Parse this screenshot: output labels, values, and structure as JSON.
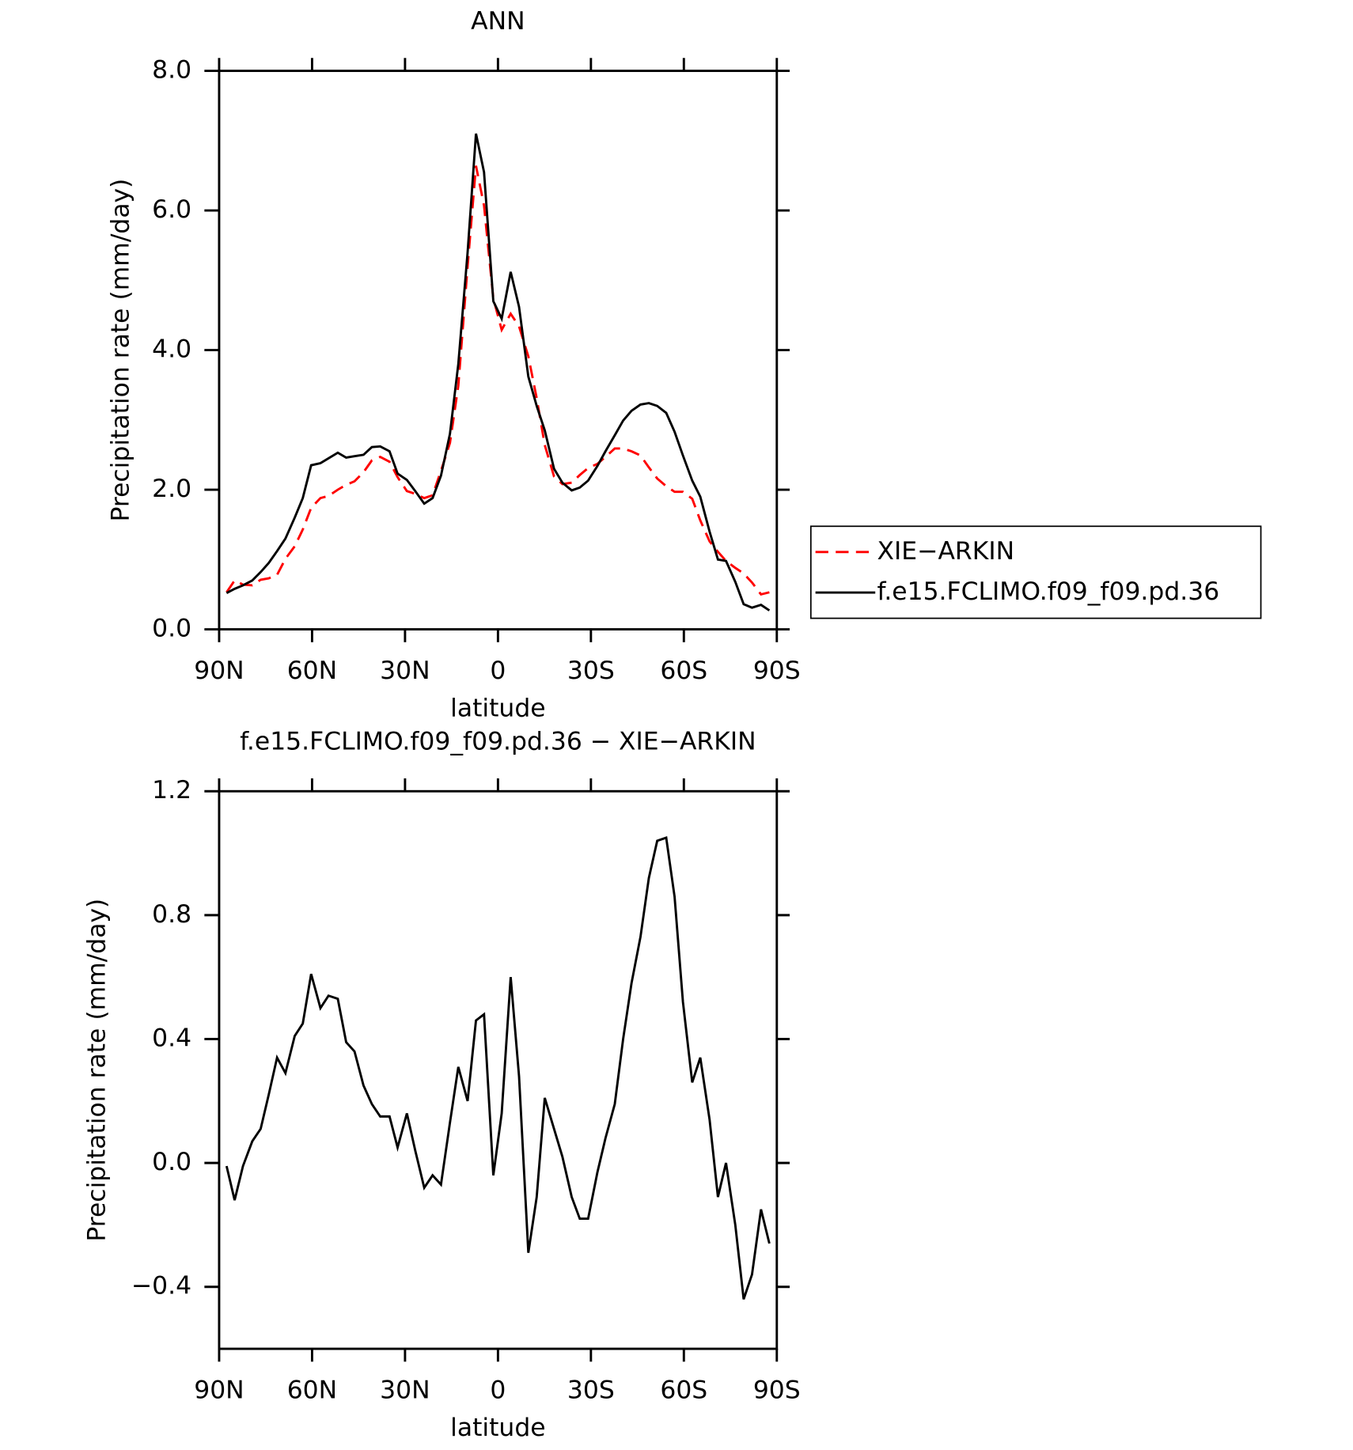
{
  "chart_data": [
    {
      "type": "line",
      "title": "ANN",
      "x_label": "latitude",
      "y_label": "Precipitation rate (mm/day)",
      "x": [
        87.6,
        85.0,
        82.3,
        79.3,
        76.6,
        74.0,
        71.3,
        68.6,
        65.6,
        63.0,
        60.3,
        57.3,
        54.7,
        51.7,
        49.0,
        46.3,
        43.4,
        40.7,
        38.0,
        35.0,
        32.4,
        29.4,
        26.7,
        23.8,
        21.1,
        18.4,
        15.5,
        12.8,
        9.8,
        7.1,
        4.5,
        1.5,
        -1.2,
        -4.1,
        -6.8,
        -9.8,
        -12.5,
        -15.1,
        -18.1,
        -20.8,
        -23.8,
        -26.4,
        -29.1,
        -32.1,
        -34.7,
        -37.7,
        -40.4,
        -43.1,
        -46.0,
        -48.7,
        -51.4,
        -54.3,
        -57.0,
        -59.7,
        -62.7,
        -65.3,
        -68.3,
        -71.0,
        -73.6,
        -76.6,
        -79.3,
        -82.0,
        -84.9,
        -87.6
      ],
      "series": [
        {
          "name": "XIE−ARKIN",
          "color": "#ff0000",
          "line_style": "dashed",
          "values": [
            0.53,
            0.7,
            0.64,
            0.63,
            0.71,
            0.73,
            0.78,
            1.01,
            1.19,
            1.43,
            1.74,
            1.88,
            1.91,
            2.0,
            2.07,
            2.12,
            2.25,
            2.42,
            2.47,
            2.4,
            2.18,
            1.98,
            1.94,
            1.88,
            1.92,
            2.27,
            2.67,
            3.49,
            5.2,
            6.64,
            6.07,
            4.74,
            4.29,
            4.52,
            4.34,
            3.91,
            3.31,
            2.64,
            2.19,
            2.08,
            2.1,
            2.21,
            2.31,
            2.37,
            2.47,
            2.59,
            2.59,
            2.55,
            2.49,
            2.32,
            2.16,
            2.05,
            1.97,
            1.97,
            1.87,
            1.56,
            1.26,
            1.11,
            0.98,
            0.88,
            0.8,
            0.67,
            0.5,
            0.53
          ]
        },
        {
          "name": "f.e15.FCLIMO.f09_f09.pd.36",
          "color": "#000000",
          "line_style": "solid",
          "values": [
            0.52,
            0.58,
            0.63,
            0.7,
            0.82,
            0.95,
            1.12,
            1.3,
            1.6,
            1.88,
            2.35,
            2.38,
            2.45,
            2.53,
            2.46,
            2.48,
            2.5,
            2.61,
            2.62,
            2.55,
            2.23,
            2.14,
            1.98,
            1.8,
            1.88,
            2.2,
            2.8,
            3.8,
            5.4,
            7.1,
            6.55,
            4.7,
            4.45,
            5.12,
            4.62,
            3.62,
            3.2,
            2.85,
            2.3,
            2.1,
            1.99,
            2.03,
            2.13,
            2.34,
            2.55,
            2.78,
            2.99,
            3.13,
            3.22,
            3.24,
            3.2,
            3.1,
            2.83,
            2.49,
            2.13,
            1.9,
            1.4,
            1.0,
            0.98,
            0.68,
            0.36,
            0.31,
            0.35,
            0.27
          ]
        }
      ],
      "xlim": [
        90,
        -90
      ],
      "xticks": [
        {
          "value": 90,
          "label": "90N"
        },
        {
          "value": 60,
          "label": "60N"
        },
        {
          "value": 30,
          "label": "30N"
        },
        0,
        {
          "value": -30,
          "label": "30S"
        },
        {
          "value": -60,
          "label": "60S"
        },
        {
          "value": -90,
          "label": "90S"
        }
      ],
      "ylim": [
        0,
        8
      ],
      "yticks": [
        {
          "value": 0,
          "label": "0.0"
        },
        {
          "value": 2,
          "label": "2.0"
        },
        {
          "value": 4,
          "label": "4.0"
        },
        {
          "value": 6,
          "label": "6.0"
        },
        {
          "value": 8,
          "label": "8.0"
        }
      ],
      "legend": "outside-right"
    },
    {
      "type": "line",
      "title": "f.e15.FCLIMO.f09_f09.pd.36 − XIE−ARKIN",
      "x_label": "latitude",
      "y_label": "Precipitation rate (mm/day)",
      "x": [
        87.6,
        85.0,
        82.3,
        79.3,
        76.6,
        74.0,
        71.3,
        68.6,
        65.6,
        63.0,
        60.3,
        57.3,
        54.7,
        51.7,
        49.0,
        46.3,
        43.4,
        40.7,
        38.0,
        35.0,
        32.4,
        29.4,
        26.7,
        23.8,
        21.1,
        18.4,
        15.5,
        12.8,
        9.8,
        7.1,
        4.5,
        1.5,
        -1.2,
        -4.1,
        -6.8,
        -9.8,
        -12.5,
        -15.1,
        -18.1,
        -20.8,
        -23.8,
        -26.4,
        -29.1,
        -32.1,
        -34.7,
        -37.7,
        -40.4,
        -43.1,
        -46.0,
        -48.7,
        -51.4,
        -54.3,
        -57.0,
        -59.7,
        -62.7,
        -65.3,
        -68.3,
        -71.0,
        -73.6,
        -76.6,
        -79.3,
        -82.0,
        -84.9,
        -87.6
      ],
      "values": [
        -0.01,
        -0.12,
        -0.01,
        0.07,
        0.11,
        0.22,
        0.34,
        0.29,
        0.41,
        0.45,
        0.61,
        0.5,
        0.54,
        0.53,
        0.39,
        0.36,
        0.25,
        0.19,
        0.15,
        0.15,
        0.05,
        0.16,
        0.04,
        -0.08,
        -0.04,
        -0.07,
        0.13,
        0.31,
        0.2,
        0.46,
        0.48,
        -0.04,
        0.16,
        0.6,
        0.28,
        -0.29,
        -0.11,
        0.21,
        0.11,
        0.02,
        -0.11,
        -0.18,
        -0.18,
        -0.03,
        0.08,
        0.19,
        0.4,
        0.58,
        0.73,
        0.92,
        1.04,
        1.05,
        0.86,
        0.52,
        0.26,
        0.34,
        0.14,
        -0.11,
        0.0,
        -0.2,
        -0.44,
        -0.36,
        -0.15,
        -0.26
      ],
      "color": "#000000",
      "xlim": [
        90,
        -90
      ],
      "xticks": [
        {
          "value": 90,
          "label": "90N"
        },
        {
          "value": 60,
          "label": "60N"
        },
        {
          "value": 30,
          "label": "30N"
        },
        0,
        {
          "value": -30,
          "label": "30S"
        },
        {
          "value": -60,
          "label": "60S"
        },
        {
          "value": -90,
          "label": "90S"
        }
      ],
      "ylim": [
        -0.6,
        1.2
      ],
      "yticks": [
        {
          "value": -0.4,
          "label": "−0.4"
        },
        {
          "value": 0,
          "label": "0.0"
        },
        {
          "value": 0.4,
          "label": "0.4"
        },
        {
          "value": 0.8,
          "label": "0.8"
        },
        {
          "value": 1.2,
          "label": "1.2"
        }
      ]
    }
  ]
}
